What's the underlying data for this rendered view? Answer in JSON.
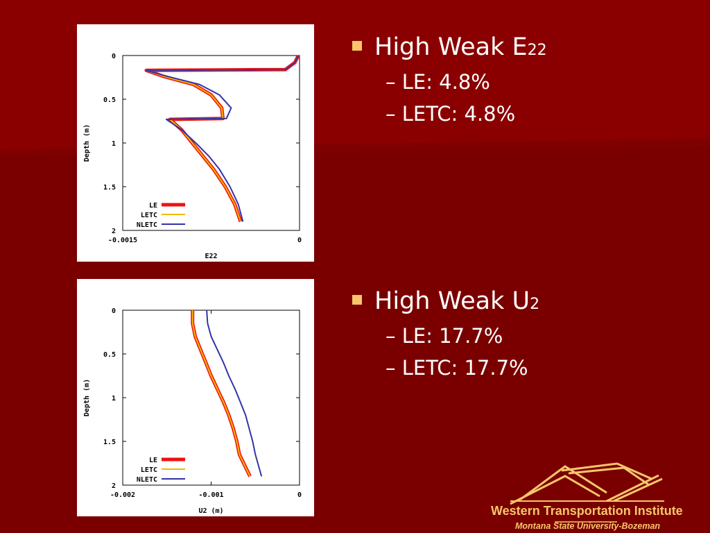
{
  "colors": {
    "background": "#7a0000",
    "accent": "#f7c66b",
    "LE": "#ee1111",
    "LETC": "#f5b800",
    "NLETC": "#3333aa"
  },
  "bullets": [
    {
      "title": "High Weak E",
      "subscript": "22",
      "items": [
        "– LE: 4.8%",
        "– LETC: 4.8%"
      ]
    },
    {
      "title": "High Weak U",
      "subscript": "2",
      "items": [
        "– LE: 17.7%",
        "– LETC: 17.7%"
      ]
    }
  ],
  "logo": {
    "title": "Western Transportation Institute",
    "subtitle": "Montana State University-Bozeman"
  },
  "chart_data": [
    {
      "type": "line",
      "xlabel": "E22",
      "ylabel": "Depth (m)",
      "xlim": [
        -0.0015,
        0
      ],
      "ylim": [
        2,
        0
      ],
      "x_tick_labels": [
        "-0.0015",
        "0"
      ],
      "x_ticks": [
        -0.0015,
        0
      ],
      "y_ticks": [
        0,
        0.5,
        1,
        1.5,
        2
      ],
      "y_tick_labels": [
        "0",
        "0.5",
        "1",
        "1.5",
        "2"
      ],
      "legend_position": "bottom-left",
      "series": [
        {
          "name": "LE",
          "color": "#ee1111",
          "width": 5,
          "x": [
            -1e-05,
            -4e-05,
            -0.00012,
            -0.0013,
            -0.00115,
            -0.0009,
            -0.00075,
            -0.00066,
            -0.00065,
            -0.0011,
            -0.001,
            -0.00091,
            -0.00082,
            -0.00073,
            -0.00063,
            -0.00055,
            -0.0005
          ],
          "y": [
            0.0,
            0.08,
            0.16,
            0.17,
            0.24,
            0.33,
            0.45,
            0.6,
            0.72,
            0.73,
            0.85,
            1.0,
            1.15,
            1.3,
            1.5,
            1.7,
            1.9
          ]
        },
        {
          "name": "LETC",
          "color": "#f5b800",
          "width": 2,
          "x": [
            -1e-05,
            -4e-05,
            -0.00012,
            -0.0013,
            -0.00115,
            -0.0009,
            -0.00075,
            -0.00066,
            -0.00065,
            -0.0011,
            -0.001,
            -0.00091,
            -0.00082,
            -0.00073,
            -0.00063,
            -0.00055,
            -0.0005
          ],
          "y": [
            0.0,
            0.08,
            0.16,
            0.17,
            0.24,
            0.33,
            0.45,
            0.6,
            0.72,
            0.73,
            0.85,
            1.0,
            1.15,
            1.3,
            1.5,
            1.7,
            1.9
          ]
        },
        {
          "name": "NLETC",
          "color": "#3333aa",
          "width": 2,
          "x": [
            -1e-05,
            -4e-05,
            -0.00012,
            -0.0013,
            -0.00112,
            -0.00085,
            -0.00068,
            -0.00058,
            -0.00062,
            -0.00113,
            -0.001,
            -0.00088,
            -0.00077,
            -0.00068,
            -0.00059,
            -0.00052,
            -0.00048
          ],
          "y": [
            0.0,
            0.08,
            0.16,
            0.17,
            0.24,
            0.33,
            0.45,
            0.6,
            0.72,
            0.73,
            0.85,
            1.0,
            1.15,
            1.3,
            1.5,
            1.7,
            1.9
          ]
        }
      ]
    },
    {
      "type": "line",
      "xlabel": "U2 (m)",
      "ylabel": "Depth (m)",
      "xlim": [
        -0.002,
        0
      ],
      "ylim": [
        2,
        0
      ],
      "x_tick_labels": [
        "-0.002",
        "-0.001",
        "0"
      ],
      "x_ticks": [
        -0.002,
        -0.001,
        0
      ],
      "y_ticks": [
        0,
        0.5,
        1,
        1.5,
        2
      ],
      "y_tick_labels": [
        "0",
        "0.5",
        "1",
        "1.5",
        "2"
      ],
      "legend_position": "bottom-left",
      "series": [
        {
          "name": "LE",
          "color": "#ee1111",
          "width": 5,
          "x": [
            -0.00121,
            -0.00121,
            -0.00118,
            -0.00112,
            -0.00106,
            -0.001,
            -0.00093,
            -0.00086,
            -0.0008,
            -0.00075,
            -0.00071,
            -0.00068,
            -0.00056
          ],
          "y": [
            0.0,
            0.15,
            0.3,
            0.45,
            0.6,
            0.75,
            0.9,
            1.05,
            1.2,
            1.35,
            1.5,
            1.65,
            1.9
          ]
        },
        {
          "name": "LETC",
          "color": "#f5b800",
          "width": 2,
          "x": [
            -0.00121,
            -0.00121,
            -0.00118,
            -0.00112,
            -0.00106,
            -0.001,
            -0.00093,
            -0.00086,
            -0.0008,
            -0.00075,
            -0.00071,
            -0.00068,
            -0.00056
          ],
          "y": [
            0.0,
            0.15,
            0.3,
            0.45,
            0.6,
            0.75,
            0.9,
            1.05,
            1.2,
            1.35,
            1.5,
            1.65,
            1.9
          ]
        },
        {
          "name": "NLETC",
          "color": "#3333aa",
          "width": 2,
          "x": [
            -0.00105,
            -0.00104,
            -0.001,
            -0.00093,
            -0.00086,
            -0.0008,
            -0.00073,
            -0.00067,
            -0.00061,
            -0.00057,
            -0.00053,
            -0.0005,
            -0.00043
          ],
          "y": [
            0.0,
            0.15,
            0.3,
            0.45,
            0.6,
            0.75,
            0.9,
            1.05,
            1.2,
            1.35,
            1.5,
            1.65,
            1.9
          ]
        }
      ]
    }
  ]
}
